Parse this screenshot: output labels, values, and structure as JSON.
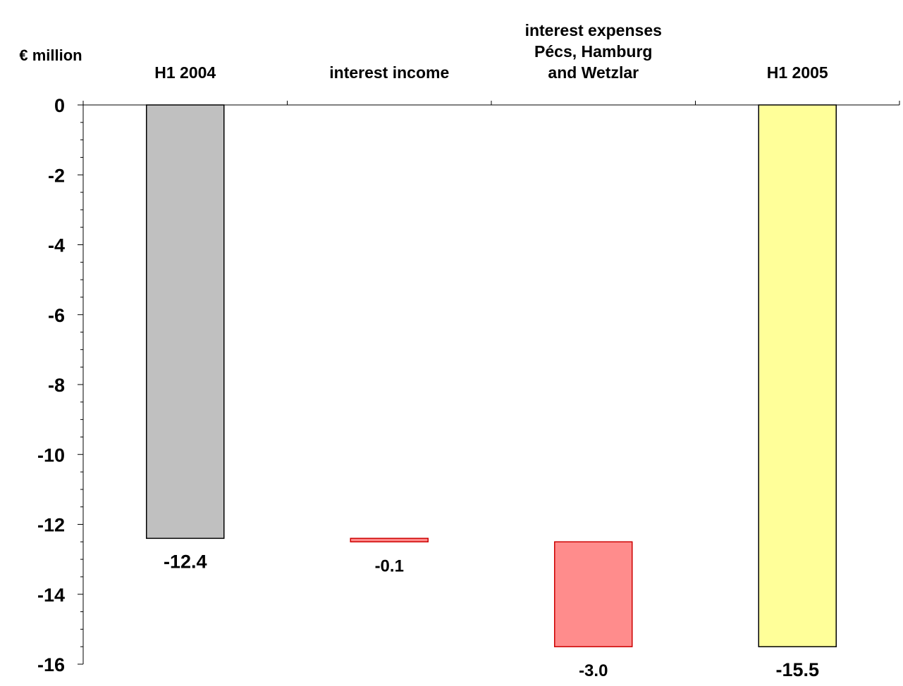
{
  "chart_data": {
    "type": "waterfall",
    "y_axis_label": "€ million",
    "categories": [
      "H1 2004",
      "interest income",
      "interest expenses\nPécs, Hamburg\nand Wetzlar",
      "H1 2005"
    ],
    "values": [
      -12.4,
      -0.1,
      -3.0,
      -15.5
    ],
    "value_labels": [
      "-12.4",
      "-0.1",
      "-3.0",
      "-15.5"
    ],
    "colors": [
      "#c0c0c0",
      "#ff8c8c",
      "#ff8c8c",
      "#ffff99"
    ],
    "ylim": [
      -16,
      0
    ],
    "yticks": [
      0,
      -2,
      -4,
      -6,
      -8,
      -10,
      -12,
      -14,
      -16
    ],
    "grid": false
  }
}
